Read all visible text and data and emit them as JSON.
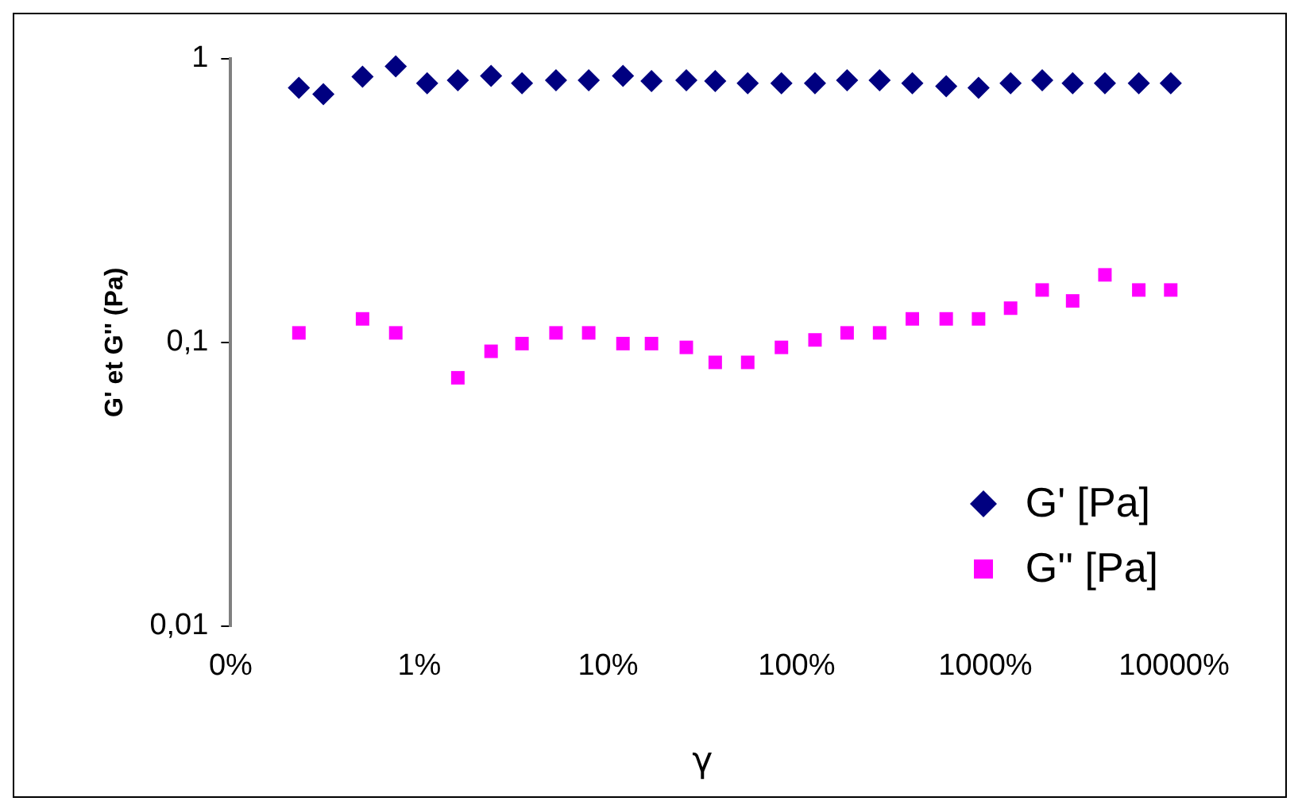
{
  "chart_data": {
    "type": "scatter",
    "xlabel": "γ",
    "ylabel": "G' et G'' (Pa)",
    "log": "xy",
    "grid": false,
    "legend": "bottom right",
    "xlim": [
      0.1,
      10000
    ],
    "xticks": [
      {
        "value": 0.1,
        "label": "0%"
      },
      {
        "value": 1,
        "label": "1%"
      },
      {
        "value": 10,
        "label": "10%"
      },
      {
        "value": 100,
        "label": "100%"
      },
      {
        "value": 1000,
        "label": "1000%"
      },
      {
        "value": 10000,
        "label": "10000%"
      }
    ],
    "ylim": [
      0.01,
      1
    ],
    "yticks": [
      {
        "value": 0.01,
        "label": "0,01"
      },
      {
        "value": 0.1,
        "label": "0,1"
      },
      {
        "value": 1,
        "label": "1"
      }
    ],
    "series": [
      {
        "name": "G' [Pa]",
        "color": "#000080",
        "marker": "diamond",
        "x": [
          0.23,
          0.31,
          0.5,
          0.75,
          1.1,
          1.6,
          2.4,
          3.5,
          5.3,
          7.9,
          12,
          17,
          26,
          37,
          55,
          83,
          125,
          185,
          275,
          410,
          620,
          920,
          1360,
          2000,
          2900,
          4300,
          6500,
          9600
        ],
        "values": [
          0.79,
          0.75,
          0.865,
          0.94,
          0.82,
          0.84,
          0.87,
          0.82,
          0.84,
          0.84,
          0.87,
          0.835,
          0.84,
          0.835,
          0.82,
          0.82,
          0.82,
          0.84,
          0.84,
          0.82,
          0.8,
          0.79,
          0.82,
          0.84,
          0.82,
          0.82,
          0.82,
          0.82
        ]
      },
      {
        "name": "G'' [Pa]",
        "color": "#ff00ff",
        "marker": "square",
        "x": [
          0.23,
          0.5,
          0.75,
          1.6,
          2.4,
          3.5,
          5.3,
          7.9,
          12,
          17,
          26,
          37,
          55,
          83,
          125,
          185,
          275,
          410,
          620,
          920,
          1360,
          2000,
          2900,
          4300,
          6500,
          9600
        ],
        "values": [
          0.108,
          0.121,
          0.108,
          0.075,
          0.093,
          0.099,
          0.108,
          0.108,
          0.099,
          0.099,
          0.096,
          0.085,
          0.085,
          0.096,
          0.102,
          0.108,
          0.108,
          0.121,
          0.121,
          0.121,
          0.132,
          0.153,
          0.14,
          0.173,
          0.153,
          0.153
        ]
      }
    ]
  }
}
